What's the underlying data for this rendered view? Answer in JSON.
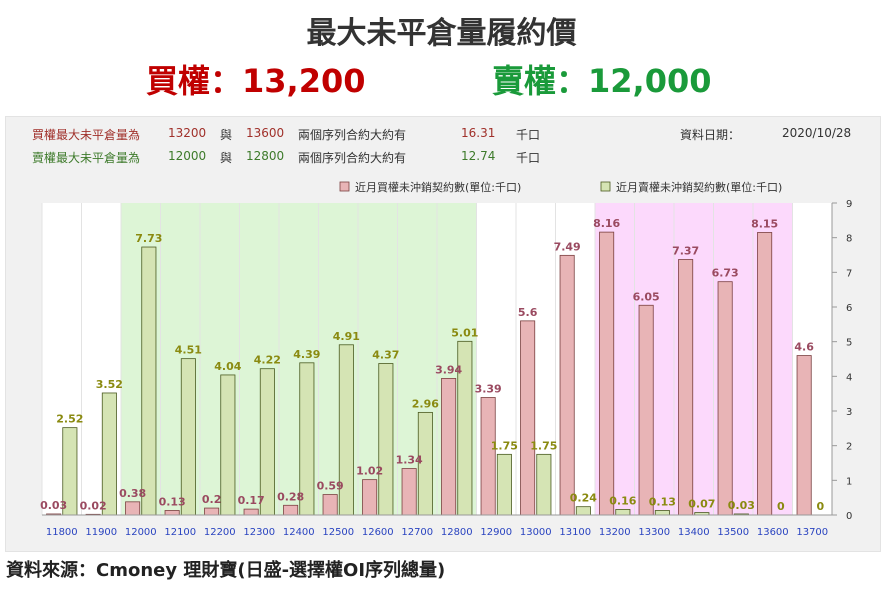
{
  "header": {
    "title": "最大未平倉量履約價",
    "call_label": "買權：13,200",
    "put_label": "賣權：12,000"
  },
  "info": {
    "call_row": {
      "label": "買權最大未平倉量為",
      "strike1": "13200",
      "conj": "與",
      "strike2": "13600",
      "desc": "兩個序列合約大約有",
      "value": "16.31",
      "unit": "千口"
    },
    "put_row": {
      "label": "賣權最大未平倉量為",
      "strike1": "12000",
      "conj": "與",
      "strike2": "12800",
      "desc": "兩個序列合約大約有",
      "value": "12.74",
      "unit": "千口"
    },
    "date_label": "資料日期：",
    "date_value": "2020/10/28"
  },
  "source": "資料來源：Cmoney 理財寶(日盛-選擇權OI序列總量)",
  "colors": {
    "call": "#e8b4b6",
    "put": "#d5e4b4",
    "green_band": "#ddf5d6",
    "pink_band": "#fcd9fc"
  },
  "chart_data": {
    "type": "bar",
    "categories": [
      "11800",
      "11900",
      "12000",
      "12100",
      "12200",
      "12300",
      "12400",
      "12500",
      "12600",
      "12700",
      "12800",
      "12900",
      "13000",
      "13100",
      "13200",
      "13300",
      "13400",
      "13500",
      "13600",
      "13700"
    ],
    "series": [
      {
        "name": "近月買權未沖銷契約數(單位:千口)",
        "values": [
          0.03,
          0.02,
          0.38,
          0.13,
          0.2,
          0.17,
          0.28,
          0.59,
          1.02,
          1.34,
          3.94,
          3.39,
          5.6,
          7.49,
          8.16,
          6.05,
          7.37,
          6.73,
          8.15,
          4.6
        ]
      },
      {
        "name": "近月賣權未沖銷契約數(單位:千口)",
        "values": [
          2.52,
          3.52,
          7.73,
          4.51,
          4.04,
          4.22,
          4.39,
          4.91,
          4.37,
          2.96,
          5.01,
          1.75,
          1.75,
          0.24,
          0.16,
          0.13,
          0.07,
          0.03,
          0,
          0
        ]
      }
    ],
    "call_labels": [
      "0.03",
      "0.02",
      "0.38",
      "0.13",
      "0.2",
      "0.17",
      "0.28",
      "0.59",
      "1.02",
      "1.34",
      "3.94",
      "3.39",
      "5.6",
      "7.49",
      "8.16",
      "6.05",
      "7.37",
      "6.73",
      "8.15",
      "4.6"
    ],
    "put_labels": [
      "2.52",
      "3.52",
      "7.73",
      "4.51",
      "4.04",
      "4.22",
      "4.39",
      "4.91",
      "4.37",
      "2.96",
      "5.01",
      "1.75",
      "1.75",
      "0.24",
      "0.16",
      "0.13",
      "0.07",
      "0.03",
      "0",
      "0"
    ],
    "ylim": [
      0,
      9
    ],
    "y_ticks": [
      "0",
      "1",
      "2",
      "3",
      "4",
      "5",
      "6",
      "7",
      "8",
      "9"
    ],
    "y_axis_side": "right",
    "legend_placement": "top-right",
    "green_band": [
      "12000",
      "12800"
    ],
    "pink_band": [
      "13200",
      "13600"
    ]
  }
}
